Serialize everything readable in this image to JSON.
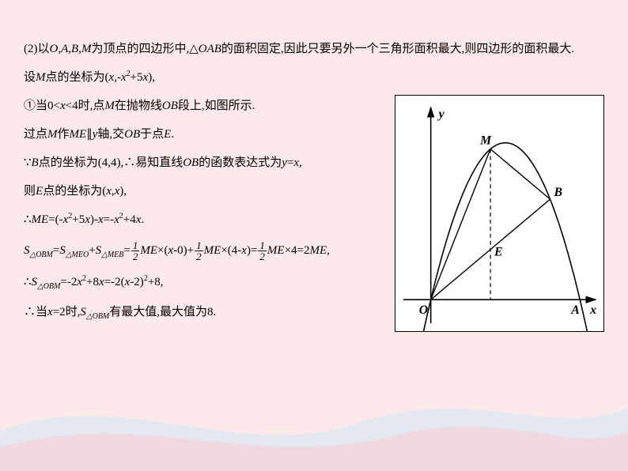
{
  "background_color": "#fde9ea",
  "text_color": "#000000",
  "figure": {
    "border_color": "#000000",
    "background": "#ffffff",
    "axis_labels": {
      "x": "x",
      "y": "y",
      "origin": "O"
    },
    "point_labels": [
      "M",
      "B",
      "E",
      "A"
    ],
    "parabola": {
      "type": "quadratic",
      "formula": "y = -x^2 + 5x",
      "x_range": [
        -0.3,
        5.3
      ],
      "stroke": "#000000",
      "stroke_width": 1.6
    },
    "line_OB": {
      "from": "O",
      "to": "B",
      "stroke": "#000000",
      "stroke_width": 1.4
    },
    "line_OM": {
      "from": "O",
      "to": "M",
      "stroke": "#000000",
      "stroke_width": 1.4
    },
    "line_MB": {
      "from": "M",
      "to": "B",
      "stroke": "#000000",
      "stroke_width": 1.4
    },
    "line_OA": {
      "from": "O",
      "to": "A",
      "stroke": "#000000",
      "stroke_width": 1.4
    },
    "dash_ME": {
      "from": "M",
      "to": "x-axis",
      "stroke": "#000000",
      "dash": "4,3"
    },
    "points": {
      "O": [
        0,
        0
      ],
      "A": [
        5,
        0
      ],
      "B": [
        4,
        4
      ],
      "M": [
        2,
        6
      ],
      "E": [
        2,
        2
      ]
    }
  },
  "lines": {
    "l1_a": "(2)以",
    "l1_b": "O",
    "l1_c": ",",
    "l1_d": "A",
    "l1_e": ",",
    "l1_f": "B",
    "l1_g": ",",
    "l1_h": "M",
    "l1_i": "为顶点的四边形中,",
    "l1_tri": "△",
    "l1_j": "OAB",
    "l1_k": "的面积固定,因此只要另外一个三角形面积最大,则四边形的面积最大.",
    "l2_a": "设",
    "l2_b": "M",
    "l2_c": "点的坐标为(",
    "l2_d": "x",
    "l2_e": ",-",
    "l2_f": "x",
    "l2_g": "2",
    "l2_h": "+5",
    "l2_i": "x",
    "l2_j": "),",
    "l3_a": "①当0<",
    "l3_b": "x",
    "l3_c": "<4时,点",
    "l3_d": "M",
    "l3_e": "在抛物线",
    "l3_f": "OB",
    "l3_g": "段上,如图所示.",
    "l4_a": "过点",
    "l4_b": "M",
    "l4_c": "作",
    "l4_d": "ME",
    "l4_e": "∥",
    "l4_f": "y",
    "l4_g": "轴,交",
    "l4_h": "OB",
    "l4_i": "于点",
    "l4_j": "E",
    "l4_k": ".",
    "l5_a": "∵",
    "l5_b": "B",
    "l5_c": "点的坐标为(4,4),∴易知直线",
    "l5_d": "OB",
    "l5_e": "的函数表达式为",
    "l5_f": "y",
    "l5_g": "=",
    "l5_h": "x",
    "l5_i": ",",
    "l6_a": "则",
    "l6_b": "E",
    "l6_c": "点的坐标为(",
    "l6_d": "x",
    "l6_e": ",",
    "l6_f": "x",
    "l6_g": "),",
    "l7_a": "∴",
    "l7_b": "ME",
    "l7_c": "=(-",
    "l7_d": "x",
    "l7_e": "2",
    "l7_f": "+5",
    "l7_g": "x",
    "l7_h": ")-",
    "l7_i": "x",
    "l7_j": "=-",
    "l7_k": "x",
    "l7_l": "2",
    "l7_m": "+4",
    "l7_n": "x",
    "l7_o": ".",
    "l8_a": "S",
    "l8_sub1": "△OBM",
    "l8_b": "=",
    "l8_c": "S",
    "l8_sub2": "△MEO",
    "l8_d": "+",
    "l8_e": "S",
    "l8_sub3": "△MEB",
    "l8_f": "=",
    "l8_g": "ME",
    "l8_h": "×(",
    "l8_i": "x",
    "l8_j": "-0)+",
    "l8_k": "ME",
    "l8_l": "×(4-",
    "l8_m": "x",
    "l8_n": ")=",
    "l8_o": "ME",
    "l8_p": "×4=2",
    "l8_q": "ME",
    "l8_r": ",",
    "l9_a": "∴",
    "l9_b": "S",
    "l9_sub": "△OBM",
    "l9_c": "=-2",
    "l9_d": "x",
    "l9_e": "2",
    "l9_f": "+8",
    "l9_g": "x",
    "l9_h": "=-2(",
    "l9_i": "x",
    "l9_j": "-2)",
    "l9_k": "2",
    "l9_l": "+8,",
    "l10_a": "∴当",
    "l10_b": "x",
    "l10_c": "=2时,",
    "l10_d": "S",
    "l10_sub": "△OBM",
    "l10_e": "有最大值,最大值为8.",
    "frac_num": "1",
    "frac_den": "2"
  }
}
